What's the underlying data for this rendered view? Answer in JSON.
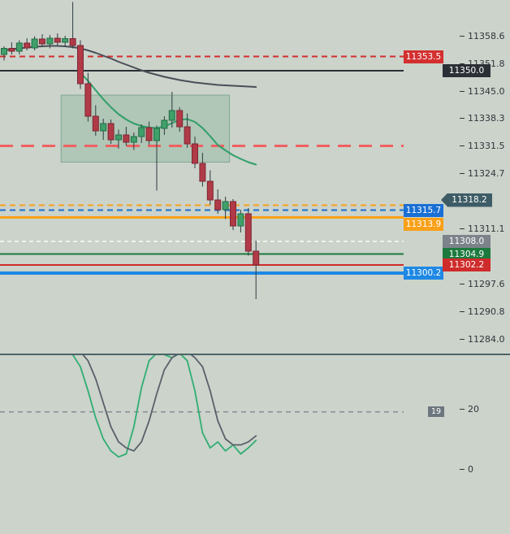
{
  "colors": {
    "background": "#cbd3cb",
    "bull": "#3fa06a",
    "bull_border": "#256b45",
    "bear": "#b03a47",
    "bear_border": "#7e2733",
    "wick": "#2f3b40",
    "ma_slow": "#494f55",
    "ma_fast": "#2f9e68",
    "zone_fill": "rgba(96,160,120,0.25)",
    "zone_border": "rgba(80,140,105,0.55)",
    "axis_text": "#30363b",
    "separator": "#4e6466",
    "osc_green": "#2fae72",
    "osc_gray": "#596068",
    "threshold_line": "#888e93",
    "price_marker_bg": "#3e5c66",
    "threshold_badge_bg": "#6d767e"
  },
  "chart_data": {
    "type": "candlestick",
    "pane_main": {
      "price_ticks": [
        11358.6,
        11351.8,
        11345.0,
        11338.3,
        11331.5,
        11324.7,
        11311.1,
        11297.6,
        11290.8,
        11284.0
      ],
      "ohlc": [
        [
          11354.0,
          11356.0,
          11352.5,
          11355.5
        ],
        [
          11355.5,
          11357.0,
          11354.0,
          11354.8
        ],
        [
          11354.8,
          11357.5,
          11354.0,
          11356.8
        ],
        [
          11356.8,
          11358.0,
          11355.0,
          11355.6
        ],
        [
          11355.6,
          11358.5,
          11355.0,
          11357.8
        ],
        [
          11357.8,
          11359.0,
          11356.0,
          11356.6
        ],
        [
          11356.6,
          11358.8,
          11355.5,
          11358.0
        ],
        [
          11358.0,
          11359.2,
          11356.2,
          11357.0
        ],
        [
          11357.0,
          11358.6,
          11355.8,
          11357.9
        ],
        [
          11357.9,
          11366.9,
          11355.5,
          11356.2
        ],
        [
          11356.2,
          11357.5,
          11345.5,
          11346.8
        ],
        [
          11346.8,
          11349.5,
          11337.5,
          11338.8
        ],
        [
          11338.8,
          11341.5,
          11334.0,
          11335.2
        ],
        [
          11335.2,
          11338.2,
          11333.0,
          11337.0
        ],
        [
          11337.0,
          11338.0,
          11332.0,
          11333.0
        ],
        [
          11333.0,
          11335.5,
          11330.8,
          11334.2
        ],
        [
          11334.2,
          11336.2,
          11331.5,
          11332.4
        ],
        [
          11332.4,
          11334.8,
          11330.5,
          11333.8
        ],
        [
          11333.8,
          11336.8,
          11332.2,
          11336.0
        ],
        [
          11336.0,
          11337.5,
          11331.8,
          11332.8
        ],
        [
          11332.8,
          11336.5,
          11320.5,
          11335.8
        ],
        [
          11335.8,
          11338.8,
          11334.2,
          11337.8
        ],
        [
          11337.8,
          11344.8,
          11336.0,
          11340.2
        ],
        [
          11340.2,
          11341.0,
          11335.0,
          11336.2
        ],
        [
          11336.2,
          11339.5,
          11331.0,
          11332.0
        ],
        [
          11332.0,
          11333.8,
          11326.0,
          11327.2
        ],
        [
          11327.2,
          11329.8,
          11321.5,
          11322.8
        ],
        [
          11322.8,
          11325.5,
          11317.0,
          11318.2
        ],
        [
          11318.2,
          11320.8,
          11314.8,
          11315.8
        ],
        [
          11315.8,
          11319.0,
          11313.5,
          11317.8
        ],
        [
          11317.8,
          11318.4,
          11310.8,
          11311.8
        ],
        [
          11311.8,
          11315.8,
          11310.2,
          11314.8
        ],
        [
          11314.8,
          11316.2,
          11304.5,
          11305.6
        ],
        [
          11305.6,
          11308.2,
          11293.8,
          11302.2
        ]
      ],
      "ma_slow": {
        "start_index": 0,
        "values": [
          11355.0,
          11355.3,
          11355.5,
          11355.7,
          11355.9,
          11356.0,
          11356.1,
          11356.1,
          11356.0,
          11355.8,
          11355.5,
          11355.0,
          11354.4,
          11353.7,
          11353.0,
          11352.2,
          11351.5,
          11350.8,
          11350.1,
          11349.5,
          11349.0,
          11348.5,
          11348.1,
          11347.7,
          11347.4,
          11347.1,
          11346.9,
          11346.7,
          11346.5,
          11346.4,
          11346.3,
          11346.2,
          11346.1,
          11346.0
        ]
      },
      "ma_fast": {
        "start_index": 10,
        "values": [
          11349.5,
          11347.5,
          11345.2,
          11343.0,
          11341.0,
          11339.3,
          11338.0,
          11337.0,
          11336.4,
          11336.0,
          11335.9,
          11336.3,
          11337.1,
          11337.9,
          11338.1,
          11337.4,
          11335.9,
          11333.9,
          11331.7,
          11330.4,
          11329.2,
          11328.3,
          11327.5,
          11326.9
        ]
      },
      "zone": {
        "start_index": 8,
        "end_index": 29,
        "top": 11344.0,
        "bottom": 11327.5
      },
      "levels": [
        {
          "price": 11353.5,
          "label": "11353.5",
          "line": {
            "color": "#d32f2f",
            "width": 2,
            "dash": "7,5"
          },
          "badge": {
            "bg": "#d32f2f",
            "column": "left"
          }
        },
        {
          "price": 11350.0,
          "label": "11350.0",
          "line": {
            "color": "#2b3036",
            "width": 2,
            "dash": ""
          },
          "badge": {
            "bg": "#2b3036",
            "column": "right"
          }
        },
        {
          "price": 11331.5,
          "label": "",
          "line": {
            "color": "#ef6060",
            "width": 3,
            "dash": "16,10"
          },
          "badge": null
        },
        {
          "price": 11316.9,
          "label": "",
          "line": {
            "color": "#f9a019",
            "width": 2,
            "dash": "7,5"
          },
          "badge": null
        },
        {
          "price": 11315.7,
          "label": "11315.7",
          "line": {
            "color": "#1a6fd4",
            "width": 2,
            "dash": "7,5"
          },
          "badge": {
            "bg": "#1a6fd4",
            "column": "left"
          }
        },
        {
          "price": 11313.9,
          "label": "11313.9",
          "line": {
            "color": "#f9a019",
            "width": 3,
            "dash": ""
          },
          "badge": {
            "bg": "#f9a019",
            "column": "left"
          }
        },
        {
          "price": 11308.0,
          "label": "11308.0",
          "line": {
            "color": "#f1f2ea",
            "width": 2,
            "dash": "5,4"
          },
          "badge": {
            "bg": "#7d838a",
            "column": "right"
          }
        },
        {
          "price": 11304.9,
          "label": "11304.9",
          "line": {
            "color": "#1d7a3e",
            "width": 2,
            "dash": ""
          },
          "badge": {
            "bg": "#1d7a3e",
            "column": "right"
          }
        },
        {
          "price": 11302.2,
          "label": "11302.2",
          "line": {
            "color": "#cf2b2b",
            "width": 2,
            "dash": ""
          },
          "badge": {
            "bg": "#cf2b2b",
            "column": "right"
          }
        },
        {
          "price": 11300.2,
          "label": "11300.2",
          "line": {
            "color": "#1e88e5",
            "width": 4,
            "dash": ""
          },
          "badge": {
            "bg": "#1e88e5",
            "column": "left"
          }
        }
      ],
      "price_marker": {
        "price": 11318.2,
        "label": "11318.2"
      }
    },
    "pane_lower": {
      "ticks": [
        20,
        0
      ],
      "threshold": {
        "value": 19,
        "label": "19"
      },
      "series": [
        {
          "name": "fast-oscillator",
          "color_key": "osc_green",
          "start_index": 9,
          "values": [
            38,
            34,
            26,
            17,
            10,
            6,
            4,
            5,
            14,
            27,
            36,
            38.5,
            38,
            37,
            38.5,
            36,
            26,
            12,
            7,
            9,
            6,
            8,
            5,
            7,
            9.5
          ]
        },
        {
          "name": "slow-oscillator",
          "color_key": "osc_gray",
          "start_index": 9,
          "values": [
            40,
            39,
            36,
            30,
            22,
            14,
            9,
            7,
            6,
            9,
            16,
            25,
            33,
            37,
            38.5,
            39,
            37,
            34,
            26,
            16,
            10,
            8,
            8,
            9,
            11
          ]
        }
      ]
    }
  }
}
